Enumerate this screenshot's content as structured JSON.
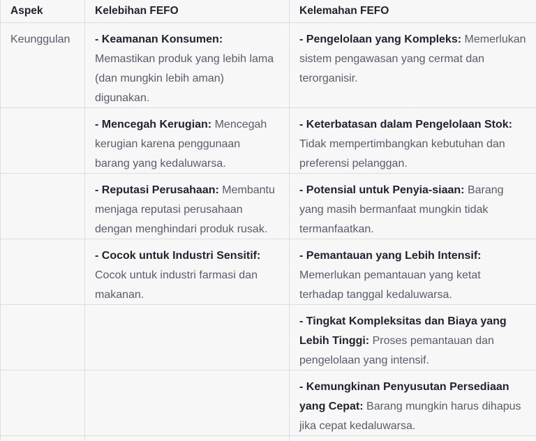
{
  "table": {
    "columns": [
      {
        "label": "Aspek"
      },
      {
        "label": "Kelebihan FEFO"
      },
      {
        "label": "Kelemahan FEFO"
      }
    ],
    "rows": [
      {
        "aspek": "Keunggulan",
        "kelebihan": {
          "title": "- Keamanan Konsumen:",
          "text": "Memastikan produk yang lebih lama (dan mungkin lebih aman) digunakan."
        },
        "kelemahan": {
          "title": "- Pengelolaan yang Kompleks:",
          "text": "Memerlukan sistem pengawasan yang cermat dan terorganisir."
        }
      },
      {
        "aspek": "",
        "kelebihan": {
          "title": "- Mencegah Kerugian:",
          "text": "Mencegah kerugian karena penggunaan barang yang kedaluwarsa."
        },
        "kelemahan": {
          "title": "- Keterbatasan dalam Pengelolaan Stok:",
          "text": "Tidak mempertimbangkan kebutuhan dan preferensi pelanggan."
        }
      },
      {
        "aspek": "",
        "kelebihan": {
          "title": "- Reputasi Perusahaan:",
          "text": "Membantu menjaga reputasi perusahaan dengan menghindari produk rusak."
        },
        "kelemahan": {
          "title": "- Potensial untuk Penyia-siaan:",
          "text": "Barang yang masih bermanfaat mungkin tidak termanfaatkan."
        }
      },
      {
        "aspek": "",
        "kelebihan": {
          "title": "- Cocok untuk Industri Sensitif:",
          "text": "Cocok untuk industri farmasi dan makanan."
        },
        "kelemahan": {
          "title": "- Pemantauan yang Lebih Intensif:",
          "text": "Memerlukan pemantauan yang ketat terhadap tanggal kedaluwarsa."
        }
      },
      {
        "aspek": "",
        "kelebihan": {
          "title": "",
          "text": ""
        },
        "kelemahan": {
          "title": "- Tingkat Kompleksitas dan Biaya yang Lebih Tinggi:",
          "text": "Proses pemantauan dan pengelolaan yang intensif."
        }
      },
      {
        "aspek": "",
        "kelebihan": {
          "title": "",
          "text": ""
        },
        "kelemahan": {
          "title": "- Kemungkinan Penyusutan Persediaan yang Cepat:",
          "text": "Barang mungkin harus dihapus jika cepat kedaluwarsa."
        }
      }
    ],
    "colors": {
      "background": "#f7f7f8",
      "border": "#dcdde1",
      "heading_text": "#21242e",
      "strong_text": "#21242e",
      "body_text": "#575c68"
    }
  }
}
